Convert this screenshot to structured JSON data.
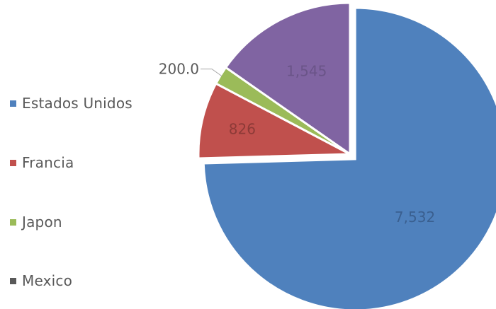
{
  "chart_data": {
    "type": "pie",
    "categories": [
      "Estados Unidos",
      "Francia",
      "Japon",
      "Mexico"
    ],
    "values": [
      7532,
      826,
      200.0,
      1545
    ],
    "data_labels": [
      "7,532",
      "826",
      "200.0",
      "1,545"
    ],
    "colors": [
      "#4f81bd",
      "#c0504d",
      "#9bbb59",
      "#8064a2"
    ],
    "legend_position": "left",
    "exploded_slice": "Estados Unidos"
  }
}
